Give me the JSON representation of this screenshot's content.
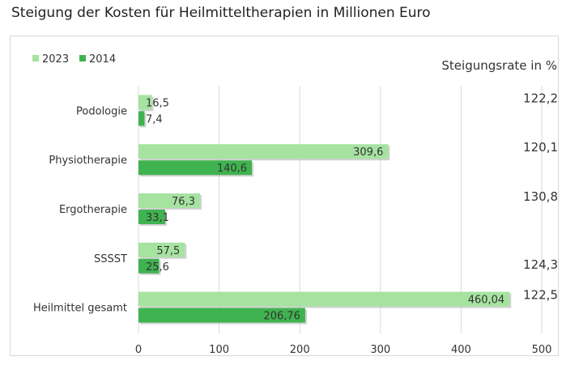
{
  "title": "Steigung der Kosten für Heilmitteltherapien in Millionen Euro",
  "rate_header": "Steigungsrate in %",
  "colors": {
    "s2023": "#a6e3a1",
    "s2014": "#3fb34f",
    "grid": "#d9d9d9"
  },
  "chart_data": {
    "type": "bar",
    "orientation": "horizontal",
    "categories": [
      "Podologie",
      "Physiotherapie",
      "Ergotherapie",
      "SSSST",
      "Heilmittel gesamt"
    ],
    "series": [
      {
        "name": "2023",
        "values": [
          16.5,
          309.6,
          76.3,
          57.5,
          460.04
        ],
        "labels": [
          "16,5",
          "309,6",
          "76,3",
          "57,5",
          "460,04"
        ]
      },
      {
        "name": "2014",
        "values": [
          7.4,
          140.6,
          33.1,
          25.6,
          206.76
        ],
        "labels": [
          "7,4",
          "140,6",
          "33,1",
          "25,6",
          "206,76"
        ]
      }
    ],
    "rates": [
      "122,2",
      "120,1",
      "130,8",
      "124,3",
      "122,5"
    ],
    "xlim": [
      0,
      500
    ],
    "xticks": [
      "0",
      "100",
      "200",
      "300",
      "400",
      "500"
    ],
    "grid": true,
    "legend": "top-left"
  }
}
